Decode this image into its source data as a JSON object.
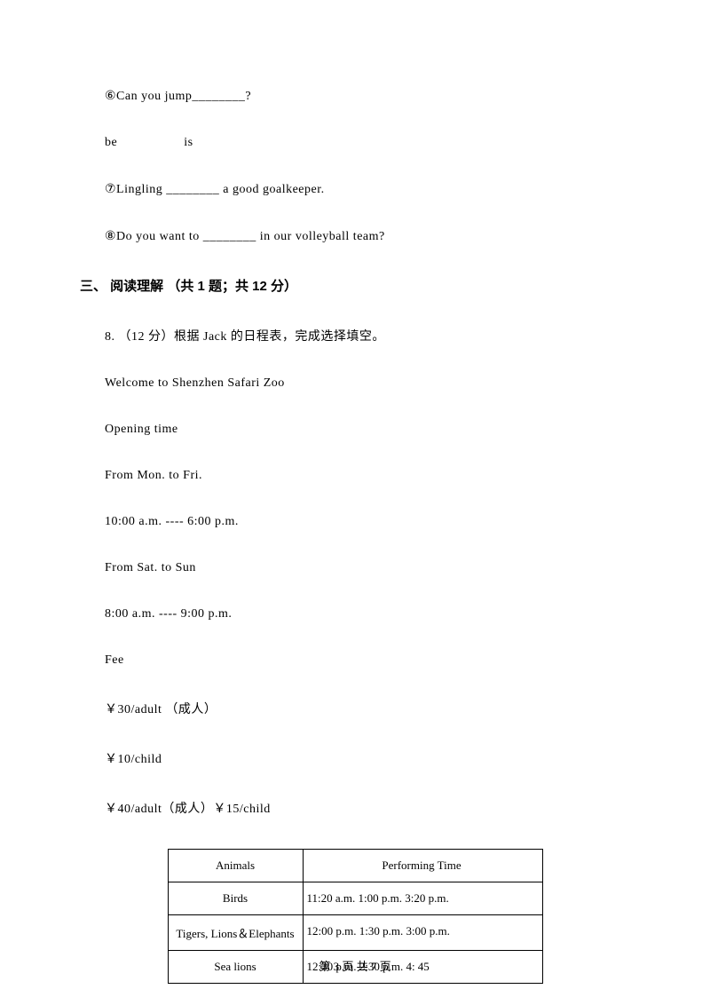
{
  "q6": "⑥Can you jump________?",
  "beIs": {
    "be": "be",
    "is": "is"
  },
  "q7": "⑦Lingling ________ a good goalkeeper.",
  "q8": "⑧Do you want to ________ in our volleyball team?",
  "sectionHeading": "三、 阅读理解 （共 1 题；共 12 分）",
  "q8num": "8. （12 分）根据 Jack 的日程表，完成选择填空。",
  "lines": {
    "welcome": "Welcome to Shenzhen Safari Zoo",
    "opening": "Opening time",
    "monFri": "From Mon. to Fri.",
    "time1": "10:00 a.m. ---- 6:00 p.m.",
    "satSun": "From Sat. to Sun",
    "time2": "8:00 a.m. ---- 9:00 p.m.",
    "fee": "Fee",
    "fee1": "￥30/adult （成人）",
    "fee2": "￥10/child",
    "fee3": "￥40/adult（成人）￥15/child"
  },
  "table": {
    "header": {
      "col1": "Animals",
      "col2": "Performing Time"
    },
    "rows": [
      {
        "col1": "Birds",
        "col2": "11:20  a.m.   1:00  p.m.   3:20 p.m."
      },
      {
        "col1": "Tigers, Lions＆Elephants",
        "col2": "12:00  p.m.   1:30  p.m.   3:00 p.m."
      },
      {
        "col1": "Sea lions",
        "col2": "12:30 p.m.   2:30 p.m.   4: 45"
      }
    ]
  },
  "footer": "第 3 页 共 7 页"
}
